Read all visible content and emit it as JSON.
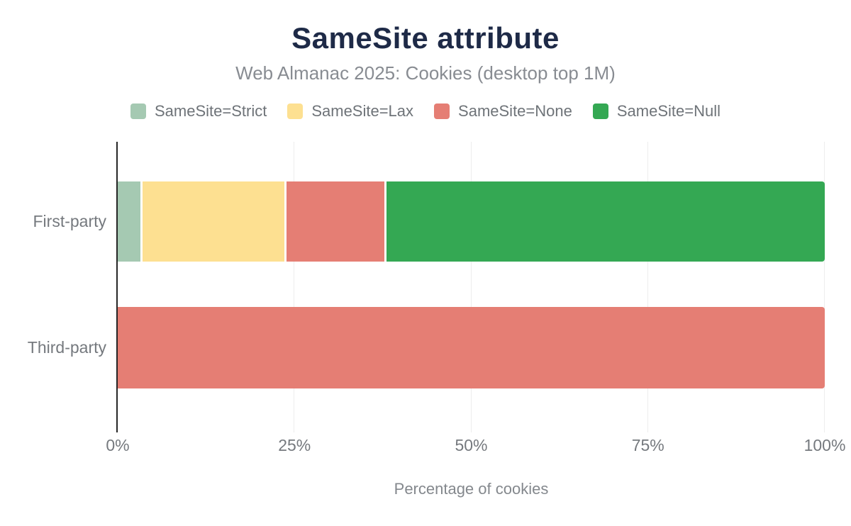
{
  "title": "SameSite attribute",
  "subtitle": "Web Almanac 2025: Cookies (desktop top 1M)",
  "colors": {
    "title_text": "#1e2a47",
    "muted_text": "#84888d",
    "axis_line": "#262626",
    "gridline": "#ededed",
    "strict": "#a5c9b2",
    "lax": "#fde091",
    "none": "#e57e74",
    "null": "#34a853"
  },
  "chart_data": {
    "type": "bar",
    "orientation": "horizontal",
    "stacked": true,
    "title": "SameSite attribute",
    "subtitle": "Web Almanac 2025: Cookies (desktop top 1M)",
    "categories": [
      "First-party",
      "Third-party"
    ],
    "series": [
      {
        "name": "SameSite=Strict",
        "color": "#a5c9b2",
        "values": [
          3.2,
          0
        ]
      },
      {
        "name": "SameSite=Lax",
        "color": "#fde091",
        "values": [
          20.3,
          0
        ]
      },
      {
        "name": "SameSite=None",
        "color": "#e57e74",
        "values": [
          13.9,
          100
        ]
      },
      {
        "name": "SameSite=Null",
        "color": "#34a853",
        "values": [
          62.6,
          0
        ]
      }
    ],
    "xlabel": "Percentage of cookies",
    "ylabel": "",
    "xlim": [
      0,
      100
    ],
    "x_ticks": [
      {
        "label": "0%",
        "percent": 0
      },
      {
        "label": "25%",
        "percent": 25
      },
      {
        "label": "50%",
        "percent": 50
      },
      {
        "label": "75%",
        "percent": 75
      },
      {
        "label": "100%",
        "percent": 100
      }
    ],
    "grid": true,
    "legend_position": "top"
  }
}
